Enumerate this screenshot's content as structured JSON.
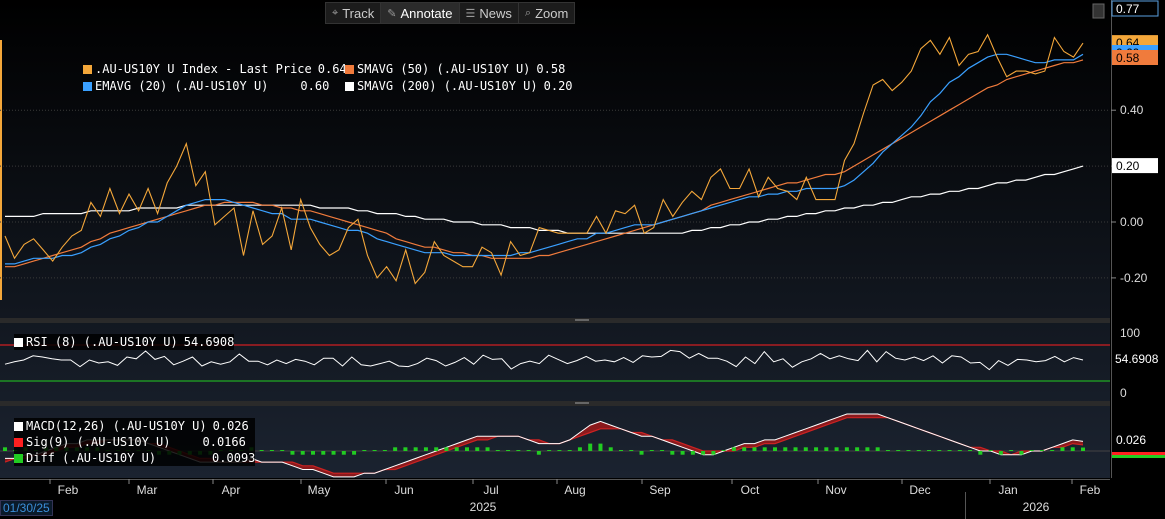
{
  "toolbar": {
    "items": [
      {
        "label": "Track",
        "icon": "crosshair-icon",
        "active": false
      },
      {
        "label": "Annotate",
        "icon": "pencil-icon",
        "active": true
      },
      {
        "label": "News",
        "icon": "news-icon",
        "active": false
      },
      {
        "label": "Zoom",
        "icon": "zoom-icon",
        "active": false
      }
    ]
  },
  "main_legend": [
    {
      "name": ".AU-US10Y U Index - Last Price",
      "value": "0.64",
      "color": "#f4a73a"
    },
    {
      "name": "SMAVG (50) (.AU-US10Y U)",
      "value": "0.58",
      "color": "#f07b3c"
    },
    {
      "name": "EMAVG (20) (.AU-US10Y U)",
      "value": "0.60",
      "color": "#3aa0ff"
    },
    {
      "name": "SMAVG (200) (.AU-US10Y U)",
      "value": "0.20",
      "color": "#ffffff"
    }
  ],
  "rsi_legend": {
    "name": "RSI (8) (.AU-US10Y U)",
    "value": "54.6908",
    "color": "#ffffff"
  },
  "macd_legend": [
    {
      "name": "MACD(12,26) (.AU-US10Y U)",
      "value": "0.026",
      "color": "#ffffff"
    },
    {
      "name": "Sig(9) (.AU-US10Y U)",
      "value": "0.0166",
      "color": "#ff2020"
    },
    {
      "name": "Diff (.AU-US10Y U)",
      "value": "0.0093",
      "color": "#22cc22"
    }
  ],
  "start_date": "01/30/25",
  "colors": {
    "price": "#f4a73a",
    "sma50": "#f07b3c",
    "ema20": "#3aa0ff",
    "sma200": "#ffffff",
    "rsi_upper": "#ff2020",
    "rsi_lower": "#22cc22",
    "macd": "#ffffff",
    "signal": "#cc2222",
    "diff": "#22cc22"
  },
  "chart_data": [
    {
      "type": "line",
      "title": "",
      "ylim": [
        -0.26,
        0.77
      ],
      "y_ticks": [
        "0.40",
        "0.20",
        "0.00",
        "-0.20"
      ],
      "y_tick_values": [
        0.4,
        0.2,
        0.0,
        -0.2
      ],
      "right_labels": [
        {
          "text": "0.77",
          "value": 0.77,
          "fg": "#ffffff",
          "bg": "#000000",
          "border": "#5aa0e0"
        },
        {
          "text": "0.64",
          "value": 0.64,
          "fg": "#000000",
          "bg": "#f4a73a"
        },
        {
          "text": "0.60",
          "value": 0.6,
          "fg": "#000000",
          "bg": "#3aa0ff"
        },
        {
          "text": "0.58",
          "value": 0.58,
          "fg": "#000000",
          "bg": "#f07b3c"
        },
        {
          "text": "0.20",
          "value": 0.2,
          "fg": "#000000",
          "bg": "#ffffff"
        }
      ],
      "months": [
        "Feb",
        "Mar",
        "Apr",
        "May",
        "Jun",
        "Jul",
        "Aug",
        "Sep",
        "Oct",
        "Nov",
        "Dec",
        "Jan",
        "Feb"
      ],
      "years": [
        "2025",
        "2026"
      ],
      "series": [
        {
          "name": ".AU-US10Y U Index - Last Price",
          "values": [
            -0.05,
            -0.13,
            -0.08,
            -0.06,
            -0.1,
            -0.14,
            -0.09,
            -0.05,
            -0.03,
            0.07,
            0.02,
            0.12,
            0.03,
            0.1,
            0.04,
            0.12,
            0.03,
            0.14,
            0.2,
            0.28,
            0.13,
            0.18,
            -0.01,
            0.02,
            0.05,
            -0.12,
            0.04,
            -0.08,
            -0.05,
            0.05,
            -0.1,
            0.08,
            -0.02,
            -0.08,
            -0.12,
            -0.1,
            -0.02,
            0.01,
            -0.12,
            -0.2,
            -0.16,
            -0.21,
            -0.1,
            -0.22,
            -0.18,
            -0.07,
            -0.12,
            -0.14,
            -0.16,
            -0.16,
            -0.09,
            -0.11,
            -0.19,
            -0.07,
            -0.12,
            -0.11,
            -0.02,
            -0.03,
            -0.04,
            -0.04,
            -0.04,
            -0.04,
            0.02,
            -0.04,
            0.04,
            0.03,
            0.06,
            -0.04,
            -0.02,
            0.08,
            0.02,
            0.07,
            0.11,
            0.08,
            0.16,
            0.19,
            0.12,
            0.12,
            0.19,
            0.09,
            0.16,
            0.12,
            0.11,
            0.08,
            0.16,
            0.08,
            0.08,
            0.08,
            0.22,
            0.28,
            0.39,
            0.49,
            0.51,
            0.47,
            0.5,
            0.54,
            0.62,
            0.65,
            0.6,
            0.66,
            0.56,
            0.6,
            0.61,
            0.67,
            0.59,
            0.52,
            0.54,
            0.54,
            0.53,
            0.54,
            0.66,
            0.61,
            0.59,
            0.64
          ]
        },
        {
          "name": "EMAVG (20) (.AU-US10Y U)",
          "values": [
            -0.15,
            -0.15,
            -0.14,
            -0.13,
            -0.13,
            -0.13,
            -0.12,
            -0.12,
            -0.11,
            -0.09,
            -0.08,
            -0.06,
            -0.05,
            -0.03,
            -0.02,
            -0.0,
            0.0,
            0.02,
            0.04,
            0.06,
            0.07,
            0.08,
            0.08,
            0.08,
            0.07,
            0.06,
            0.05,
            0.04,
            0.03,
            0.03,
            0.01,
            0.01,
            0.01,
            -0.0,
            -0.01,
            -0.02,
            -0.03,
            -0.03,
            -0.04,
            -0.06,
            -0.07,
            -0.08,
            -0.09,
            -0.1,
            -0.11,
            -0.11,
            -0.11,
            -0.12,
            -0.12,
            -0.12,
            -0.12,
            -0.12,
            -0.12,
            -0.12,
            -0.11,
            -0.11,
            -0.1,
            -0.09,
            -0.08,
            -0.07,
            -0.06,
            -0.06,
            -0.04,
            -0.04,
            -0.03,
            -0.02,
            -0.01,
            -0.01,
            -0.01,
            0.0,
            0.01,
            0.02,
            0.03,
            0.04,
            0.05,
            0.06,
            0.07,
            0.08,
            0.09,
            0.09,
            0.1,
            0.1,
            0.11,
            0.11,
            0.12,
            0.12,
            0.12,
            0.12,
            0.13,
            0.15,
            0.18,
            0.21,
            0.25,
            0.28,
            0.31,
            0.34,
            0.38,
            0.43,
            0.46,
            0.5,
            0.52,
            0.55,
            0.57,
            0.59,
            0.6,
            0.6,
            0.59,
            0.58,
            0.57,
            0.57,
            0.58,
            0.58,
            0.58,
            0.6
          ]
        },
        {
          "name": "SMAVG (50) (.AU-US10Y U)",
          "values": [
            -0.16,
            -0.16,
            -0.15,
            -0.14,
            -0.13,
            -0.12,
            -0.11,
            -0.1,
            -0.09,
            -0.07,
            -0.06,
            -0.04,
            -0.03,
            -0.02,
            -0.01,
            0.0,
            0.01,
            0.02,
            0.03,
            0.04,
            0.05,
            0.06,
            0.06,
            0.07,
            0.07,
            0.07,
            0.07,
            0.06,
            0.06,
            0.05,
            0.05,
            0.04,
            0.04,
            0.03,
            0.02,
            0.01,
            0.0,
            -0.01,
            -0.02,
            -0.03,
            -0.04,
            -0.06,
            -0.07,
            -0.08,
            -0.09,
            -0.09,
            -0.1,
            -0.11,
            -0.11,
            -0.12,
            -0.12,
            -0.13,
            -0.13,
            -0.13,
            -0.13,
            -0.13,
            -0.12,
            -0.12,
            -0.11,
            -0.1,
            -0.09,
            -0.08,
            -0.07,
            -0.06,
            -0.05,
            -0.04,
            -0.03,
            -0.02,
            -0.01,
            0.0,
            0.01,
            0.02,
            0.03,
            0.04,
            0.06,
            0.07,
            0.08,
            0.09,
            0.1,
            0.11,
            0.12,
            0.13,
            0.14,
            0.14,
            0.15,
            0.16,
            0.17,
            0.17,
            0.18,
            0.2,
            0.22,
            0.24,
            0.26,
            0.28,
            0.3,
            0.32,
            0.34,
            0.36,
            0.38,
            0.4,
            0.42,
            0.44,
            0.46,
            0.48,
            0.49,
            0.51,
            0.52,
            0.53,
            0.54,
            0.55,
            0.56,
            0.57,
            0.57,
            0.58
          ]
        },
        {
          "name": "SMAVG (200) (.AU-US10Y U)",
          "values": [
            0.02,
            0.02,
            0.02,
            0.02,
            0.03,
            0.03,
            0.03,
            0.03,
            0.03,
            0.04,
            0.04,
            0.04,
            0.04,
            0.04,
            0.05,
            0.05,
            0.05,
            0.05,
            0.05,
            0.06,
            0.06,
            0.06,
            0.06,
            0.06,
            0.06,
            0.06,
            0.06,
            0.06,
            0.06,
            0.06,
            0.06,
            0.06,
            0.06,
            0.05,
            0.05,
            0.05,
            0.05,
            0.04,
            0.04,
            0.03,
            0.03,
            0.03,
            0.02,
            0.02,
            0.01,
            0.01,
            0.01,
            0.0,
            0.0,
            -0.0,
            -0.01,
            -0.01,
            -0.01,
            -0.02,
            -0.02,
            -0.02,
            -0.03,
            -0.03,
            -0.03,
            -0.04,
            -0.04,
            -0.04,
            -0.04,
            -0.04,
            -0.04,
            -0.04,
            -0.04,
            -0.04,
            -0.04,
            -0.04,
            -0.04,
            -0.04,
            -0.03,
            -0.03,
            -0.02,
            -0.02,
            -0.01,
            -0.01,
            0.0,
            0.0,
            0.01,
            0.01,
            0.02,
            0.02,
            0.03,
            0.03,
            0.04,
            0.04,
            0.05,
            0.05,
            0.06,
            0.06,
            0.07,
            0.07,
            0.08,
            0.09,
            0.09,
            0.1,
            0.1,
            0.11,
            0.11,
            0.12,
            0.12,
            0.13,
            0.14,
            0.14,
            0.15,
            0.15,
            0.16,
            0.17,
            0.17,
            0.18,
            0.19,
            0.2
          ]
        }
      ]
    },
    {
      "type": "line",
      "title": "",
      "ylim": [
        0,
        100
      ],
      "y_ticks": [
        "100",
        "0"
      ],
      "y_tick_values": [
        100,
        0
      ],
      "reference_lines": [
        80,
        20
      ],
      "right_label": "54.6908",
      "series": [
        {
          "name": "RSI (8) (.AU-US10Y U)",
          "values": [
            48,
            52,
            55,
            62,
            60,
            57,
            55,
            55,
            44,
            55,
            50,
            52,
            46,
            60,
            57,
            70,
            56,
            61,
            47,
            53,
            60,
            45,
            52,
            48,
            52,
            65,
            53,
            53,
            47,
            55,
            49,
            56,
            53,
            47,
            58,
            58,
            45,
            60,
            47,
            45,
            49,
            53,
            45,
            44,
            49,
            58,
            54,
            45,
            51,
            59,
            48,
            63,
            56,
            57,
            40,
            49,
            53,
            49,
            63,
            56,
            49,
            54,
            61,
            53,
            55,
            52,
            59,
            51,
            62,
            60,
            61,
            71,
            69,
            58,
            66,
            58,
            58,
            53,
            44,
            60,
            49,
            69,
            52,
            57,
            43,
            52,
            57,
            66,
            57,
            62,
            57,
            54,
            71,
            52,
            69,
            58,
            55,
            60,
            54,
            62,
            50,
            62,
            60,
            50,
            51,
            39,
            54,
            46,
            56,
            55,
            52,
            54,
            61,
            52,
            59,
            55
          ]
        }
      ]
    },
    {
      "type": "line",
      "title": "",
      "right_label": "0.026",
      "series": [
        {
          "name": "MACD(12,26) (.AU-US10Y U)",
          "values": [
            -0.02,
            -0.02,
            -0.01,
            -0.01,
            0.0,
            0.01,
            0.02,
            0.02,
            0.03,
            0.03,
            0.03,
            0.03,
            0.03,
            0.03,
            0.02,
            0.01,
            0.0,
            -0.01,
            -0.02,
            -0.03,
            -0.03,
            -0.03,
            -0.03,
            -0.03,
            -0.02,
            -0.03,
            -0.03,
            -0.03,
            -0.04,
            -0.05,
            -0.05,
            -0.06,
            -0.07,
            -0.07,
            -0.07,
            -0.06,
            -0.06,
            -0.05,
            -0.04,
            -0.03,
            -0.02,
            -0.01,
            0.0,
            0.01,
            0.02,
            0.03,
            0.04,
            0.04,
            0.04,
            0.04,
            0.04,
            0.03,
            0.02,
            0.02,
            0.02,
            0.03,
            0.05,
            0.07,
            0.08,
            0.07,
            0.06,
            0.05,
            0.04,
            0.04,
            0.03,
            0.02,
            0.01,
            0.0,
            -0.01,
            -0.01,
            0.0,
            0.01,
            0.02,
            0.02,
            0.03,
            0.03,
            0.04,
            0.05,
            0.06,
            0.07,
            0.08,
            0.09,
            0.1,
            0.1,
            0.1,
            0.1,
            0.09,
            0.08,
            0.07,
            0.06,
            0.05,
            0.04,
            0.03,
            0.02,
            0.01,
            0.0,
            -0.0,
            -0.01,
            -0.01,
            -0.01,
            -0.0,
            0.0,
            0.01,
            0.02,
            0.03,
            0.026
          ]
        },
        {
          "name": "Sig(9) (.AU-US10Y U)",
          "values": [
            -0.03,
            -0.02,
            -0.02,
            -0.01,
            -0.01,
            0.0,
            0.01,
            0.01,
            0.02,
            0.02,
            0.03,
            0.03,
            0.03,
            0.03,
            0.02,
            0.02,
            0.01,
            0.0,
            -0.01,
            -0.02,
            -0.02,
            -0.03,
            -0.03,
            -0.03,
            -0.03,
            -0.03,
            -0.03,
            -0.03,
            -0.03,
            -0.04,
            -0.04,
            -0.05,
            -0.06,
            -0.06,
            -0.06,
            -0.06,
            -0.06,
            -0.05,
            -0.05,
            -0.04,
            -0.03,
            -0.02,
            -0.01,
            -0.0,
            0.01,
            0.02,
            0.03,
            0.03,
            0.04,
            0.04,
            0.04,
            0.03,
            0.03,
            0.02,
            0.02,
            0.03,
            0.04,
            0.05,
            0.06,
            0.06,
            0.06,
            0.05,
            0.05,
            0.04,
            0.03,
            0.03,
            0.02,
            0.01,
            0.0,
            -0.0,
            -0.0,
            0.0,
            0.01,
            0.01,
            0.02,
            0.02,
            0.03,
            0.04,
            0.05,
            0.06,
            0.07,
            0.08,
            0.09,
            0.09,
            0.09,
            0.09,
            0.09,
            0.08,
            0.07,
            0.06,
            0.05,
            0.04,
            0.03,
            0.02,
            0.01,
            0.01,
            0.0,
            -0.0,
            -0.01,
            -0.0,
            -0.0,
            0.0,
            0.01,
            0.01,
            0.02,
            0.0166
          ]
        }
      ]
    }
  ]
}
